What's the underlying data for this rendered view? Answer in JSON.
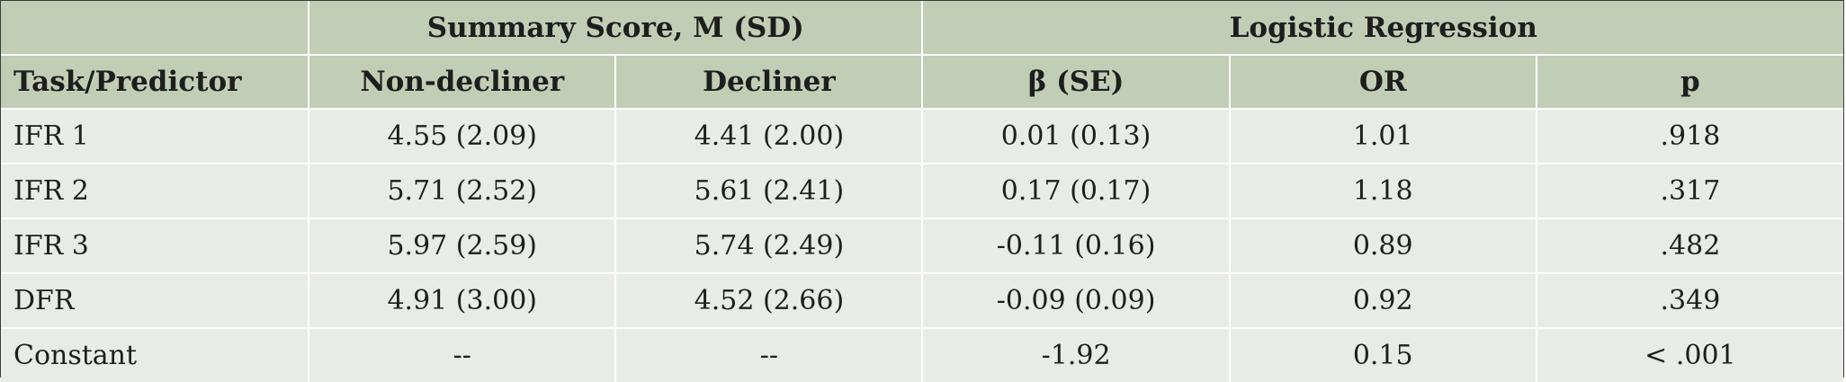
{
  "table": {
    "group_headers": {
      "summary": "Summary Score, M (SD)",
      "regression": "Logistic Regression"
    },
    "column_headers": {
      "task": "Task/Predictor",
      "non_decliner": "Non-decliner",
      "decliner": "Decliner",
      "beta": "β (SE)",
      "or": "OR",
      "p": "p"
    },
    "rows": [
      {
        "task": "IFR 1",
        "non_decliner": "4.55 (2.09)",
        "decliner": "4.41 (2.00)",
        "beta": "0.01 (0.13)",
        "or": "1.01",
        "p": ".918"
      },
      {
        "task": "IFR 2",
        "non_decliner": "5.71 (2.52)",
        "decliner": "5.61 (2.41)",
        "beta": "0.17 (0.17)",
        "or": "1.18",
        "p": ".317"
      },
      {
        "task": "IFR 3",
        "non_decliner": "5.97 (2.59)",
        "decliner": "5.74 (2.49)",
        "beta": "-0.11 (0.16)",
        "or": "0.89",
        "p": ".482"
      },
      {
        "task": "DFR",
        "non_decliner": "4.91 (3.00)",
        "decliner": "4.52 (2.66)",
        "beta": "-0.09 (0.09)",
        "or": "0.92",
        "p": ".349"
      },
      {
        "task": "Constant",
        "non_decliner": "--",
        "decliner": "--",
        "beta": "-1.92",
        "or": "0.15",
        "p": "< .001"
      }
    ]
  }
}
